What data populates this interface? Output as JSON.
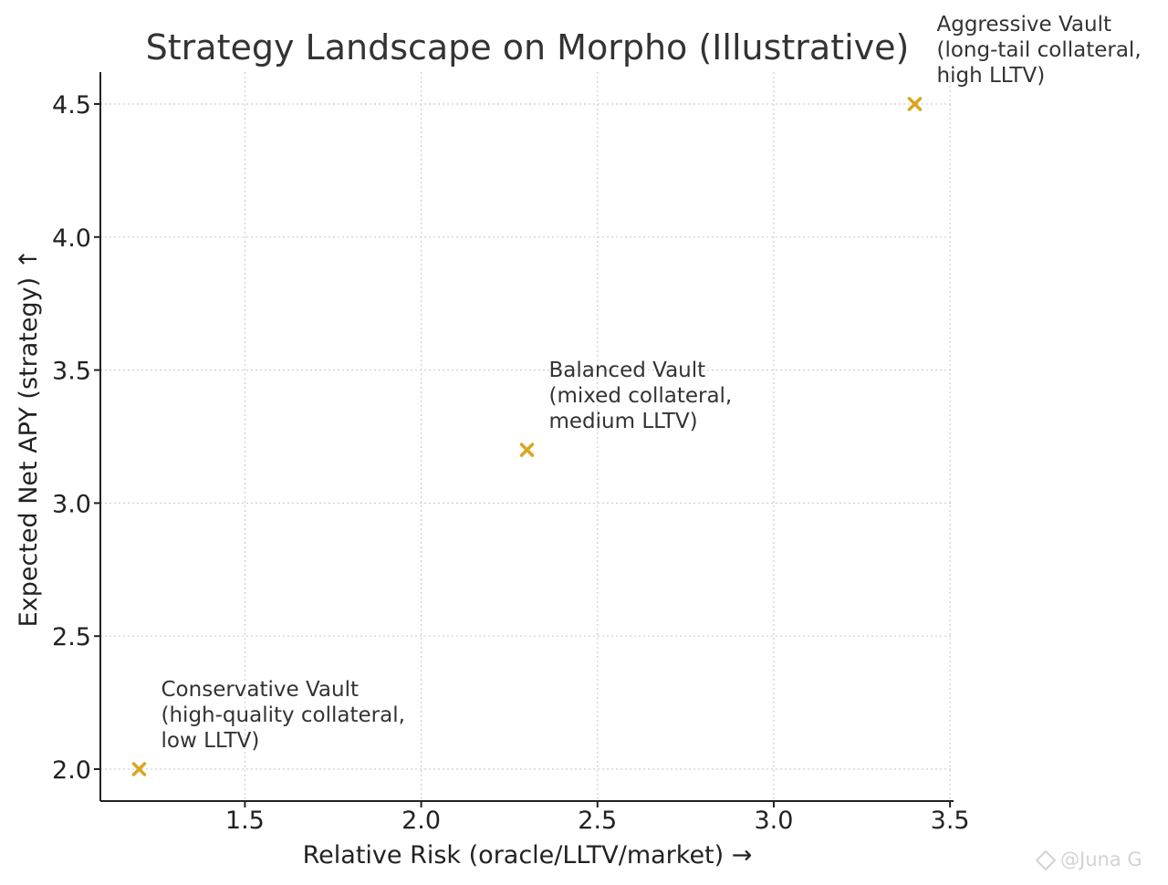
{
  "chart_data": {
    "type": "scatter",
    "title": "Strategy Landscape on Morpho (Illustrative)",
    "xlabel": "Relative Risk (oracle/LLTV/market) →",
    "ylabel": "Expected Net APY (strategy) ↑",
    "xlim": [
      1.09,
      3.51
    ],
    "ylim": [
      1.88,
      4.62
    ],
    "xticks": [
      1.5,
      2.0,
      2.5,
      3.0,
      3.5
    ],
    "xtick_labels": [
      "1.5",
      "2.0",
      "2.5",
      "3.0",
      "3.5"
    ],
    "yticks": [
      2.0,
      2.5,
      3.0,
      3.5,
      4.0,
      4.5
    ],
    "ytick_labels": [
      "2.0",
      "2.5",
      "3.0",
      "3.5",
      "4.0",
      "4.5"
    ],
    "grid": true,
    "marker": "x",
    "marker_color": "#DAA520",
    "points": [
      {
        "x": 1.2,
        "y": 2.0,
        "label_lines": [
          "Conservative Vault",
          "(high-quality collateral,",
          "low LLTV)"
        ]
      },
      {
        "x": 2.3,
        "y": 3.2,
        "label_lines": [
          "Balanced Vault",
          "(mixed collateral,",
          "medium LLTV)"
        ]
      },
      {
        "x": 3.4,
        "y": 4.5,
        "label_lines": [
          "Aggressive Vault",
          "(long-tail collateral,",
          "high LLTV)"
        ]
      }
    ]
  },
  "watermark": {
    "text": "@Juna G"
  }
}
